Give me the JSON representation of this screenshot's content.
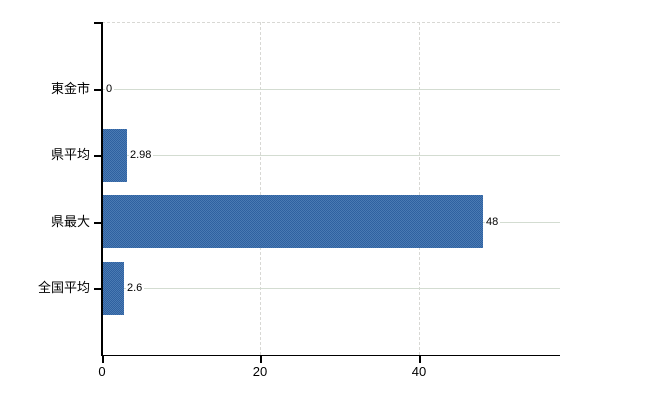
{
  "chart_data": {
    "type": "bar",
    "orientation": "horizontal",
    "categories": [
      "東金市",
      "県平均",
      "県最大",
      "全国平均"
    ],
    "values": [
      0,
      2.98,
      48,
      2.6
    ],
    "value_labels": [
      "0",
      "2.98",
      "48",
      "2.6"
    ],
    "x_ticks": [
      0,
      20,
      40
    ],
    "x_tick_labels": [
      "0",
      "20",
      "40"
    ],
    "xlim": [
      0,
      57.8
    ],
    "grid": true,
    "legend": false,
    "title": "",
    "xlabel": "",
    "ylabel": "",
    "colors": {
      "bar_light": "#4a7ab3",
      "bar_dark": "#2f61a0",
      "grid_solid": "#d3dcd1",
      "grid_dashed": "#d8d8d4",
      "axis": "#000000",
      "text": "#000000",
      "background": "#ffffff"
    }
  }
}
